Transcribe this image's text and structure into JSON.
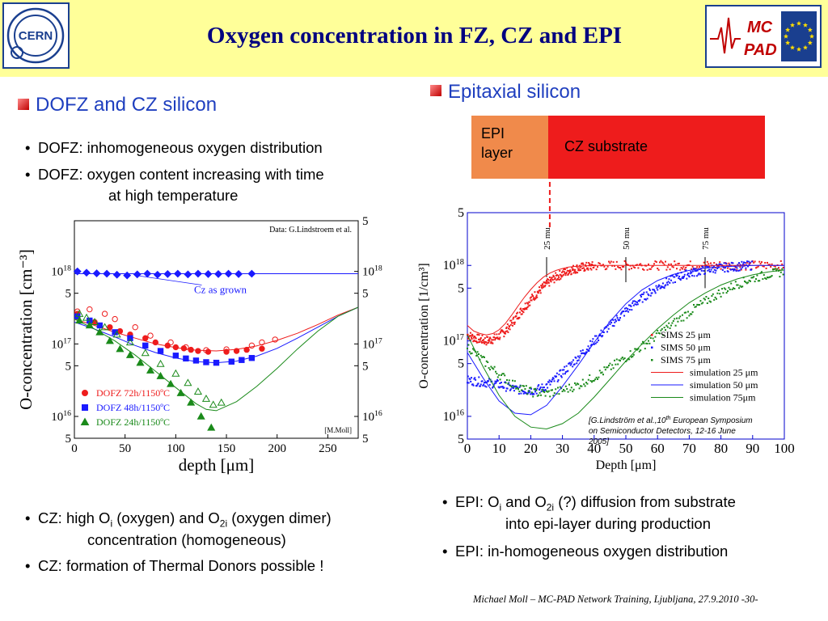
{
  "header": {
    "title": "Oxygen concentration in FZ, CZ and EPI",
    "cern_logo_text": "CERN",
    "mcpad_logo_text": [
      "MC",
      "PAD"
    ]
  },
  "left_section": {
    "title": "DOFZ and CZ silicon",
    "bullets": [
      {
        "text": "DOFZ:  inhomogeneous oxygen distribution"
      },
      {
        "line1": "DOFZ: oxygen content increasing with time",
        "line2": "at high temperature"
      }
    ],
    "bottom_bullets": [
      {
        "pre": "CZ:  high O",
        "sub1": "i",
        "mid": " (oxygen) and O",
        "sub2": "2i",
        "post": " (oxygen dimer)",
        "line2": "concentration (homogeneous)"
      },
      {
        "text": "CZ: formation of Thermal Donors possible !"
      }
    ]
  },
  "right_section": {
    "title": "Epitaxial silicon",
    "epi_label": [
      "EPI",
      "layer"
    ],
    "cz_label": "CZ substrate",
    "bullets": [
      {
        "pre": "EPI: O",
        "sub1": "i",
        "mid": " and O",
        "sub2": "2i",
        "post": " (?) diffusion from substrate",
        "line2": "into epi-layer during production"
      },
      {
        "text": "EPI: in-homogeneous oxygen distribution"
      }
    ]
  },
  "footer": {
    "text": "Michael Moll – MC-PAD Network Training, Ljubljana, 27.9.2010    -30-"
  },
  "colors": {
    "header_bg": "#ffff99",
    "title": "#000080",
    "section": "#1f3fbf",
    "red": "#ee1c1c",
    "blue": "#1a1aff",
    "green": "#1a8a1a",
    "epi": "#f08a4b"
  },
  "chart_data": [
    {
      "type": "scatter",
      "xlabel": "depth [μm]",
      "ylabel": "O-concentration [cm⁻³]",
      "xlim": [
        0,
        280
      ],
      "ylog": true,
      "ylim": [
        5000000000000000.0,
        5e+18
      ],
      "x_ticks": [
        0,
        50,
        100,
        150,
        200,
        250
      ],
      "y_ticks_left": [
        {
          "v": 5000000000000000.0,
          "b": "5"
        },
        {
          "v": 1e+16,
          "b": "10",
          "e": "16"
        },
        {
          "v": 5e+16,
          "b": "5"
        },
        {
          "v": 1e+17,
          "b": "10",
          "e": "17"
        },
        {
          "v": 5e+17,
          "b": "5"
        },
        {
          "v": 1e+18,
          "b": "10",
          "e": "18"
        }
      ],
      "y_ticks_right": [
        {
          "v": 5000000000000000.0,
          "b": "5"
        },
        {
          "v": 1e+16,
          "b": "10",
          "e": "16"
        },
        {
          "v": 5e+16,
          "b": "5"
        },
        {
          "v": 1e+17,
          "b": "10",
          "e": "17"
        },
        {
          "v": 5e+17,
          "b": "5"
        },
        {
          "v": 1e+18,
          "b": "10",
          "e": "18"
        },
        {
          "v": 5e+18,
          "b": "5"
        }
      ],
      "annotations": {
        "data_credit": "Data: G.Lindstroem et al.",
        "cz_label": "Cz as grown",
        "author": "[M.Moll]"
      },
      "legend_position": "bottom-left",
      "series": [
        {
          "name": "DOFZ 72h/1150ºC",
          "color": "#ee1c1c",
          "marker": "circle",
          "filled": {
            "x": [
              3,
              20,
              35,
              45,
              55,
              70,
              80,
              92,
              100,
              108,
              115,
              122,
              132,
              150,
              160,
              170,
              185
            ],
            "y": [
              2.6e+17,
              2e+17,
              1.7e+17,
              1.5e+17,
              1.35e+17,
              1.2e+17,
              1.05e+17,
              9.5e+16,
              9e+16,
              8.7e+16,
              8.3e+16,
              8e+16,
              7.8e+16,
              7.8e+16,
              8e+16,
              8.3e+16,
              8.6e+16
            ]
          },
          "open": {
            "x": [
              3,
              15,
              30,
              40,
              60,
              75,
              95,
              110,
              130,
              150,
              175,
              185,
              198
            ],
            "y": [
              2.8e+17,
              3e+17,
              2.6e+17,
              2.2e+17,
              1.7e+17,
              1.3e+17,
              1.05e+17,
              9e+16,
              8.2e+16,
              8.4e+16,
              9.5e+16,
              1.05e+17,
              1.15e+17
            ]
          },
          "curve": {
            "x": [
              0,
              20,
              40,
              60,
              80,
              100,
              120,
              140,
              160,
              180,
              200,
              220,
              240,
              260,
              280
            ],
            "y": [
              2.2e+17,
              1.8e+17,
              1.45e+17,
              1.2e+17,
              1e+17,
              8.9e+16,
              8.2e+16,
              8e+16,
              8.4e+16,
              9.4e+16,
              1.12e+17,
              1.4e+17,
              1.85e+17,
              2.5e+17,
              3.2e+17
            ]
          }
        },
        {
          "name": "DOFZ 48h/1150ºC",
          "color": "#1a1aff",
          "marker": "square",
          "filled": {
            "x": [
              3,
              15,
              25,
              40,
              55,
              70,
              85,
              100,
              110,
              120,
              130,
              140,
              155,
              165,
              175
            ],
            "y": [
              2.4e+17,
              2.1e+17,
              1.8e+17,
              1.45e+17,
              1.2e+17,
              9.5e+16,
              8e+16,
              6.9e+16,
              6.3e+16,
              5.9e+16,
              5.6e+16,
              5.5e+16,
              5.7e+16,
              6e+16,
              6.4e+16
            ]
          },
          "curve": {
            "x": [
              0,
              20,
              40,
              60,
              80,
              100,
              120,
              140,
              160,
              180,
              200,
              220,
              240,
              260,
              280
            ],
            "y": [
              2e+17,
              1.6e+17,
              1.25e+17,
              9.5e+16,
              7.6e+16,
              6.4e+16,
              5.7e+16,
              5.5e+16,
              5.8e+16,
              6.8e+16,
              8.7e+16,
              1.2e+17,
              1.7e+17,
              2.4e+17,
              3.2e+17
            ]
          }
        },
        {
          "name": "DOFZ 24h/1150ºC",
          "color": "#1a8a1a",
          "marker": "triangle",
          "filled": {
            "x": [
              5,
              15,
              25,
              35,
              45,
              55,
              65,
              75,
              85,
              95,
              105,
              115,
              125,
              135
            ],
            "y": [
              2.1e+17,
              1.8e+17,
              1.45e+17,
              1.1e+17,
              8.5e+16,
              7e+16,
              5.5e+16,
              4.3e+16,
              3.6e+16,
              2.8e+16,
              2.1e+16,
              1.55e+16,
              1e+16,
              7000000000000000.0
            ]
          },
          "open": {
            "x": [
              5,
              12,
              20,
              30,
              42,
              55,
              70,
              85,
              100,
              112,
              122,
              130,
              137,
              145
            ],
            "y": [
              2.6e+17,
              2.3e+17,
              2e+17,
              1.7e+17,
              1.35e+17,
              1.05e+17,
              7.5e+16,
              5.3e+16,
              3.9e+16,
              2.9e+16,
              2.2e+16,
              1.75e+16,
              1.45e+16,
              1.55e+16
            ]
          },
          "curve": {
            "x": [
              0,
              20,
              40,
              60,
              80,
              100,
              120,
              130,
              140,
              160,
              180,
              200,
              220,
              240,
              260,
              280
            ],
            "y": [
              2.2e+17,
              1.6e+17,
              1.1e+17,
              7e+16,
              4.2e+16,
              2.5e+16,
              1.5e+16,
              1.25e+16,
              1.2e+16,
              1.6e+16,
              2.6e+16,
              4.6e+16,
              8.5e+16,
              1.5e+17,
              2.4e+17,
              3.2e+17
            ]
          }
        },
        {
          "name": "Cz as grown",
          "color": "#1a1aff",
          "marker": "diamond",
          "filled": {
            "x": [
              3,
              12,
              22,
              32,
              42,
              52,
              62,
              72,
              82,
              92,
              102,
              112,
              122,
              132,
              142,
              152,
              162,
              175
            ],
            "y": [
              1e+18,
              9.6e+17,
              9.4e+17,
              9.3e+17,
              9e+17,
              8.8e+17,
              9.1e+17,
              9.3e+17,
              9e+17,
              9.2e+17,
              9.3e+17,
              9.1e+17,
              9.3e+17,
              9.2e+17,
              9.2e+17,
              9.3e+17,
              9.2e+17,
              9.3e+17
            ]
          },
          "hline": 9.3e+17
        }
      ]
    },
    {
      "type": "scatter",
      "xlabel": "Depth [μm]",
      "ylabel": "O-concentration [1/cm³]",
      "xlim": [
        0,
        100
      ],
      "ylog": true,
      "ylim": [
        5000000000000000.0,
        5e+18
      ],
      "x_ticks": [
        0,
        10,
        20,
        30,
        40,
        50,
        60,
        70,
        80,
        90,
        100
      ],
      "y_ticks_left": [
        {
          "v": 5000000000000000.0,
          "b": "5"
        },
        {
          "v": 1e+16,
          "b": "10",
          "e": "16"
        },
        {
          "v": 5e+16,
          "b": "5"
        },
        {
          "v": 1e+17,
          "b": "10",
          "e": "17"
        },
        {
          "v": 5e+17,
          "b": "5"
        },
        {
          "v": 1e+18,
          "b": "10",
          "e": "18"
        },
        {
          "v": 5e+18,
          "b": "5"
        }
      ],
      "annotations": {
        "reference_pre": "[G.Lindström et al.,10",
        "reference_sup": "th",
        "reference_post": " European Symposium",
        "reference_line2": "on Semiconductor Detectors, 12-16 June",
        "reference_line3": "2005]"
      },
      "thickness_labels": [
        {
          "x": 25,
          "text": "25 mu"
        },
        {
          "x": 50,
          "text": "50 mu"
        },
        {
          "x": 75,
          "text": "75 mu"
        }
      ],
      "legend_position": "bottom-right",
      "series": [
        {
          "name": "SIMS 25 μm",
          "color": "#ee1c1c",
          "kind": "points",
          "x": [
            0,
            2,
            4,
            6,
            8,
            10,
            12,
            14,
            16,
            18,
            20,
            22,
            24,
            26,
            28,
            30,
            32,
            34,
            36,
            38,
            40,
            45,
            50,
            55,
            60,
            65,
            70,
            75,
            80,
            85,
            90,
            95,
            100
          ],
          "y": [
            1.2e+17,
            1.1e+17,
            1.05e+17,
            1e+17,
            1.05e+17,
            1.15e+17,
            1.35e+17,
            1.7e+17,
            2.2e+17,
            2.8e+17,
            3.5e+17,
            4.3e+17,
            5.2e+17,
            6.1e+17,
            7e+17,
            7.8e+17,
            8.5e+17,
            9e+17,
            9.4e+17,
            9.6e+17,
            9.8e+17,
            1e+18,
            1e+18,
            1e+18,
            1e+18,
            1e+18,
            1e+18,
            1e+18,
            1e+18,
            1e+18,
            1e+18,
            1e+18,
            1e+18
          ]
        },
        {
          "name": "SIMS 50 μm",
          "color": "#1a1aff",
          "kind": "points",
          "x": [
            0,
            3,
            6,
            9,
            12,
            15,
            18,
            21,
            24,
            27,
            30,
            33,
            36,
            39,
            42,
            45,
            48,
            51,
            54,
            57,
            60,
            63,
            66,
            69,
            72,
            75,
            78,
            81,
            84,
            87,
            90
          ],
          "y": [
            3e+16,
            2.9e+16,
            2.8e+16,
            2.7e+16,
            2.5e+16,
            2.3e+16,
            2.2e+16,
            2.2e+16,
            2.4e+16,
            2.9e+16,
            3.8e+16,
            5e+16,
            6.7e+16,
            9e+16,
            1.2e+17,
            1.6e+17,
            2.1e+17,
            2.7e+17,
            3.4e+17,
            4.2e+17,
            5.1e+17,
            6e+17,
            6.9e+17,
            7.6e+17,
            8.2e+17,
            8.7e+17,
            9.1e+17,
            9.4e+17,
            9.6e+17,
            9.8e+17,
            1e+18
          ]
        },
        {
          "name": "SIMS 75 μm",
          "color": "#1a8a1a",
          "kind": "points",
          "x": [
            0,
            5,
            10,
            15,
            20,
            25,
            30,
            35,
            40,
            45,
            50,
            55,
            60,
            65,
            70,
            75,
            80,
            85,
            90,
            95,
            100
          ],
          "y": [
            8.5e+16,
            5.5e+16,
            3.6e+16,
            2.6e+16,
            2.1e+16,
            2e+16,
            2.2e+16,
            2.6e+16,
            3.3e+16,
            4.4e+16,
            6e+16,
            8.4e+16,
            1.2e+17,
            1.7e+17,
            2.4e+17,
            3.3e+17,
            4.4e+17,
            5.6e+17,
            6.7e+17,
            7.6e+17,
            8.3e+17
          ]
        },
        {
          "name": "simulation 25 μm",
          "color": "#ee1c1c",
          "kind": "line",
          "x": [
            0,
            2,
            4,
            6,
            8,
            10,
            12,
            14,
            16,
            18,
            20,
            22,
            24,
            26,
            28,
            30,
            32,
            34,
            36,
            38,
            40,
            45,
            50,
            60,
            70,
            80,
            90,
            100
          ],
          "y": [
            1.6e+17,
            1.35e+17,
            1.25e+17,
            1.2e+17,
            1.25e+17,
            1.4e+17,
            1.7e+17,
            2.2e+17,
            2.9e+17,
            3.8e+17,
            4.8e+17,
            5.9e+17,
            7e+17,
            7.9e+17,
            8.6e+17,
            9.1e+17,
            9.5e+17,
            9.7e+17,
            9.8e+17,
            9.9e+17,
            1e+18,
            1e+18,
            1e+18,
            1e+18,
            1e+18,
            1e+18,
            1e+18,
            1e+18
          ]
        },
        {
          "name": "simulation 50 μm",
          "color": "#1a1aff",
          "kind": "line",
          "x": [
            0,
            5,
            10,
            15,
            20,
            25,
            30,
            35,
            40,
            45,
            50,
            55,
            60,
            65,
            70,
            75,
            80,
            85,
            90,
            95,
            100
          ],
          "y": [
            7e+16,
            3.2e+16,
            1.6e+16,
            1.1e+16,
            1.05e+16,
            1.4e+16,
            2.5e+16,
            4.8e+16,
            9.5e+16,
            1.8e+17,
            3.1e+17,
            4.7e+17,
            6.3e+17,
            7.6e+17,
            8.6e+17,
            9.2e+17,
            9.6e+17,
            9.8e+17,
            1e+18,
            1e+18,
            1e+18
          ]
        },
        {
          "name": "simulation 75μm",
          "color": "#1a8a1a",
          "kind": "line",
          "x": [
            0,
            5,
            10,
            15,
            20,
            25,
            30,
            35,
            40,
            45,
            50,
            55,
            60,
            65,
            70,
            75,
            80,
            85,
            90,
            95,
            100
          ],
          "y": [
            1.2e+17,
            4.5e+16,
            1.9e+16,
            1e+16,
            7200000000000000.0,
            6800000000000000.0,
            8000000000000000.0,
            1.1e+16,
            1.8e+16,
            3.1e+16,
            5.4e+16,
            9e+16,
            1.45e+17,
            2.2e+17,
            3.2e+17,
            4.3e+17,
            5.5e+17,
            6.6e+17,
            7.5e+17,
            8.2e+17,
            8.7e+17
          ]
        }
      ]
    }
  ]
}
